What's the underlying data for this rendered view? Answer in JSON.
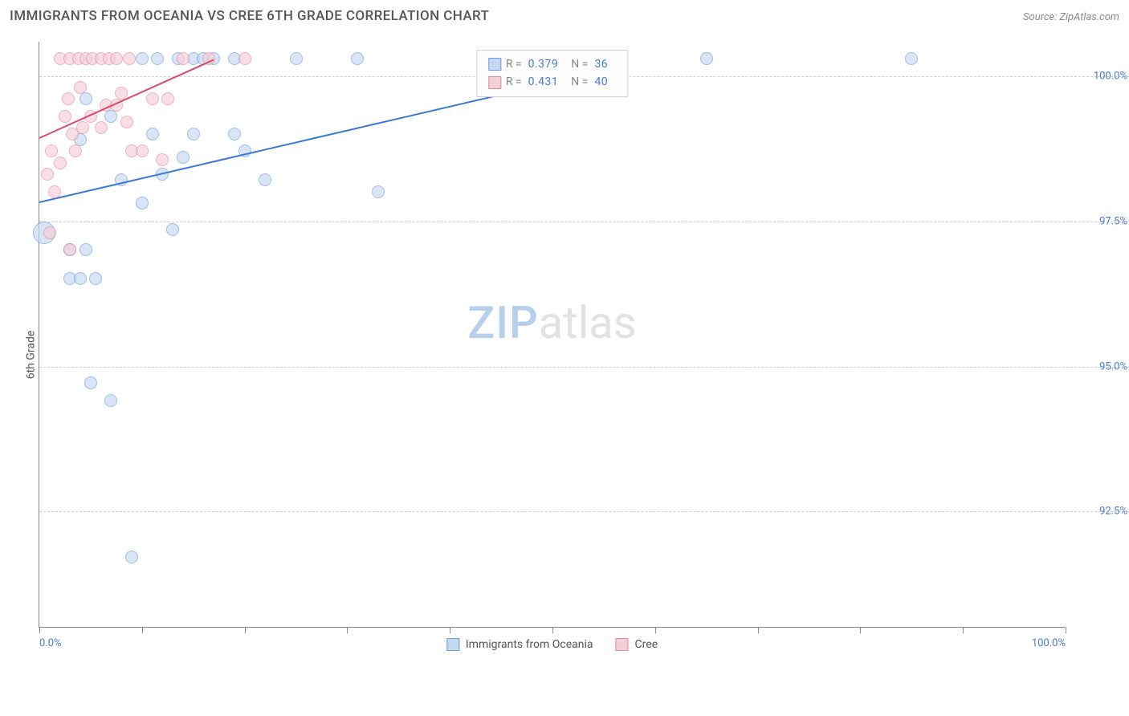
{
  "header": {
    "title": "IMMIGRANTS FROM OCEANIA VS CREE 6TH GRADE CORRELATION CHART",
    "source": "Source: ZipAtlas.com"
  },
  "chart": {
    "type": "scatter",
    "y_axis_title": "6th Grade",
    "xlim": [
      0,
      100
    ],
    "ylim": [
      90.5,
      100.6
    ],
    "x_ticks": [
      0,
      10,
      20,
      30,
      40,
      50,
      60,
      70,
      80,
      90,
      100
    ],
    "x_tick_labels": {
      "0": "0.0%",
      "100": "100.0%"
    },
    "y_ticks": [
      92.5,
      95.0,
      97.5,
      100.0
    ],
    "y_tick_labels": [
      "92.5%",
      "95.0%",
      "97.5%",
      "100.0%"
    ],
    "grid_color": "#cccccc",
    "axis_color": "#888888",
    "background_color": "#ffffff",
    "tick_label_color": "#4a7bd0",
    "marker_radius_default": 8,
    "series": [
      {
        "name": "Immigrants from Oceania",
        "fill_color": "#c5d8f1",
        "border_color": "#6c9bd8",
        "fill_opacity": 0.65,
        "R": "0.379",
        "N": "36",
        "trendline": {
          "x1": 0,
          "y1": 97.85,
          "x2": 57,
          "y2": 100.2,
          "color": "#3c78d8",
          "width": 2
        },
        "points": [
          {
            "x": 0.5,
            "y": 97.3,
            "r": 14
          },
          {
            "x": 5,
            "y": 94.7,
            "r": 8
          },
          {
            "x": 7,
            "y": 94.4,
            "r": 8
          },
          {
            "x": 9,
            "y": 91.7,
            "r": 8
          },
          {
            "x": 3,
            "y": 97.0,
            "r": 8
          },
          {
            "x": 4.5,
            "y": 97.0,
            "r": 8
          },
          {
            "x": 3,
            "y": 96.5,
            "r": 8
          },
          {
            "x": 4,
            "y": 96.5,
            "r": 8
          },
          {
            "x": 5.5,
            "y": 96.5,
            "r": 8
          },
          {
            "x": 13,
            "y": 97.35,
            "r": 8
          },
          {
            "x": 10,
            "y": 97.8,
            "r": 8
          },
          {
            "x": 8,
            "y": 98.2,
            "r": 8
          },
          {
            "x": 12,
            "y": 98.3,
            "r": 8
          },
          {
            "x": 14,
            "y": 98.6,
            "r": 8
          },
          {
            "x": 4,
            "y": 98.9,
            "r": 8
          },
          {
            "x": 11,
            "y": 99.0,
            "r": 8
          },
          {
            "x": 15,
            "y": 99.0,
            "r": 8
          },
          {
            "x": 7,
            "y": 99.3,
            "r": 8
          },
          {
            "x": 4.5,
            "y": 99.6,
            "r": 8
          },
          {
            "x": 19,
            "y": 99.0,
            "r": 8
          },
          {
            "x": 20,
            "y": 98.7,
            "r": 8
          },
          {
            "x": 22,
            "y": 98.2,
            "r": 8
          },
          {
            "x": 33,
            "y": 98.0,
            "r": 8
          },
          {
            "x": 10,
            "y": 100.3,
            "r": 8
          },
          {
            "x": 11.5,
            "y": 100.3,
            "r": 8
          },
          {
            "x": 13.5,
            "y": 100.3,
            "r": 8
          },
          {
            "x": 15,
            "y": 100.3,
            "r": 8
          },
          {
            "x": 16,
            "y": 100.3,
            "r": 8
          },
          {
            "x": 17,
            "y": 100.3,
            "r": 8
          },
          {
            "x": 19,
            "y": 100.3,
            "r": 8
          },
          {
            "x": 25,
            "y": 100.3,
            "r": 8
          },
          {
            "x": 31,
            "y": 100.3,
            "r": 8
          },
          {
            "x": 65,
            "y": 100.3,
            "r": 8
          },
          {
            "x": 85,
            "y": 100.3,
            "r": 8
          }
        ]
      },
      {
        "name": "Cree",
        "fill_color": "#f5cfd8",
        "border_color": "#e2899f",
        "fill_opacity": 0.65,
        "R": "0.431",
        "N": "40",
        "trendline": {
          "x1": 0,
          "y1": 98.95,
          "x2": 17,
          "y2": 100.3,
          "color": "#d94a6a",
          "width": 2
        },
        "points": [
          {
            "x": 1,
            "y": 97.3,
            "r": 8
          },
          {
            "x": 3,
            "y": 97.0,
            "r": 8
          },
          {
            "x": 1.5,
            "y": 98.0,
            "r": 8
          },
          {
            "x": 0.8,
            "y": 98.3,
            "r": 8
          },
          {
            "x": 1.2,
            "y": 98.7,
            "r": 8
          },
          {
            "x": 2,
            "y": 98.5,
            "r": 8
          },
          {
            "x": 2.5,
            "y": 99.3,
            "r": 8
          },
          {
            "x": 3.2,
            "y": 99.0,
            "r": 8
          },
          {
            "x": 2.8,
            "y": 99.6,
            "r": 8
          },
          {
            "x": 3.5,
            "y": 98.7,
            "r": 8
          },
          {
            "x": 4.2,
            "y": 99.1,
            "r": 8
          },
          {
            "x": 5,
            "y": 99.3,
            "r": 8
          },
          {
            "x": 4,
            "y": 99.8,
            "r": 8
          },
          {
            "x": 6,
            "y": 99.1,
            "r": 8
          },
          {
            "x": 6.5,
            "y": 99.5,
            "r": 8
          },
          {
            "x": 7.5,
            "y": 99.5,
            "r": 8
          },
          {
            "x": 8,
            "y": 99.7,
            "r": 8
          },
          {
            "x": 8.5,
            "y": 99.2,
            "r": 8
          },
          {
            "x": 9,
            "y": 98.7,
            "r": 8
          },
          {
            "x": 10,
            "y": 98.7,
            "r": 8
          },
          {
            "x": 11,
            "y": 99.6,
            "r": 8
          },
          {
            "x": 12,
            "y": 98.55,
            "r": 8
          },
          {
            "x": 12.5,
            "y": 99.6,
            "r": 8
          },
          {
            "x": 2,
            "y": 100.3,
            "r": 8
          },
          {
            "x": 3,
            "y": 100.3,
            "r": 8
          },
          {
            "x": 3.8,
            "y": 100.3,
            "r": 8
          },
          {
            "x": 4.5,
            "y": 100.3,
            "r": 8
          },
          {
            "x": 5.2,
            "y": 100.3,
            "r": 8
          },
          {
            "x": 6,
            "y": 100.3,
            "r": 8
          },
          {
            "x": 6.8,
            "y": 100.3,
            "r": 8
          },
          {
            "x": 7.5,
            "y": 100.3,
            "r": 8
          },
          {
            "x": 8.8,
            "y": 100.3,
            "r": 8
          },
          {
            "x": 14,
            "y": 100.3,
            "r": 8
          },
          {
            "x": 16.5,
            "y": 100.3,
            "r": 8
          },
          {
            "x": 20,
            "y": 100.3,
            "r": 8
          }
        ]
      }
    ],
    "legend_bottom": [
      {
        "label": "Immigrants from Oceania",
        "fill": "#c5d8f1",
        "border": "#6c9bd8"
      },
      {
        "label": "Cree",
        "fill": "#f5cfd8",
        "border": "#e2899f"
      }
    ],
    "watermark": {
      "part1": "ZIP",
      "part2": "atlas"
    }
  },
  "legend_top": {
    "r_label": "R =",
    "n_label": "N ="
  }
}
